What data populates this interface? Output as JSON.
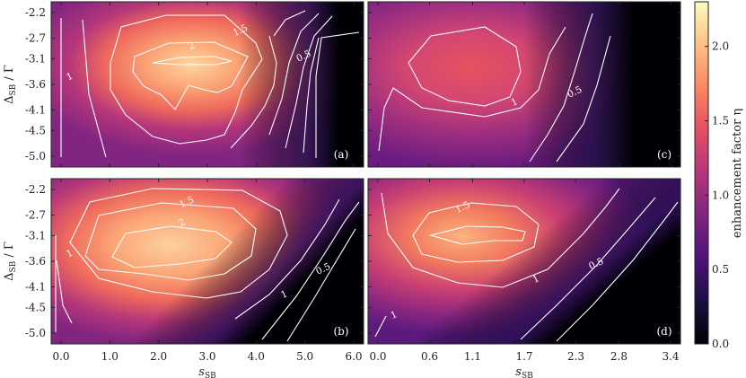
{
  "chart_data": {
    "type": "heatmap",
    "colormap": "magma",
    "colorbar": {
      "label": "enhancement factor η",
      "range": [
        0.0,
        2.3
      ],
      "ticks": [
        "0.0",
        "0.5",
        "1.0",
        "1.5",
        "2.0"
      ],
      "tick_values": [
        0.0,
        0.5,
        1.0,
        1.5,
        2.0
      ]
    },
    "y_axis": {
      "label": "ΔSB / Γ",
      "ticks": [
        "-2.2",
        "-2.7",
        "-3.1",
        "-3.6",
        "-4.1",
        "-4.5",
        "-5.0"
      ],
      "range": [
        -5.0,
        -2.2
      ]
    },
    "x_axes": {
      "left": {
        "label": "sSB",
        "ticks": [
          "0.0",
          "1.0",
          "2.0",
          "3.0",
          "4.0",
          "5.0",
          "6.0"
        ],
        "range": [
          0.0,
          6.0
        ]
      },
      "right": {
        "label": "sSB",
        "ticks": [
          "0.0",
          "0.6",
          "1.1",
          "1.7",
          "2.3",
          "2.8",
          "3.4"
        ],
        "range": [
          0.0,
          3.4
        ]
      }
    },
    "panels": [
      {
        "letter": "(a)",
        "position": "top-left",
        "x_axis": "left",
        "peak": {
          "x": 3.0,
          "y": -3.3,
          "value": 2.3
        },
        "contour_labels": [
          {
            "text": "1.5",
            "x": 3.7,
            "y": -2.6
          },
          {
            "text": "2",
            "x": 2.7,
            "y": -2.9
          },
          {
            "text": "0.5",
            "x": 5.0,
            "y": -3.1
          },
          {
            "text": "1",
            "x": 0.2,
            "y": -3.5
          }
        ]
      },
      {
        "letter": "(c)",
        "position": "top-right",
        "x_axis": "right",
        "peak": {
          "x": 1.1,
          "y": -3.2,
          "value": 1.45
        },
        "contour_labels": [
          {
            "text": "1",
            "x": 1.6,
            "y": -4.0
          },
          {
            "text": "0.5",
            "x": 2.3,
            "y": -3.8
          }
        ]
      },
      {
        "letter": "(b)",
        "position": "bottom-left",
        "x_axis": "left",
        "peak": {
          "x": 2.3,
          "y": -3.3,
          "value": 2.25
        },
        "contour_labels": [
          {
            "text": "1.5",
            "x": 2.6,
            "y": -2.5
          },
          {
            "text": "2",
            "x": 2.5,
            "y": -2.9
          },
          {
            "text": "0.5",
            "x": 5.4,
            "y": -3.8
          },
          {
            "text": "1",
            "x": 4.6,
            "y": -4.3
          },
          {
            "text": "1",
            "x": 0.2,
            "y": -3.5
          }
        ]
      },
      {
        "letter": "(d)",
        "position": "bottom-right",
        "x_axis": "right",
        "peak": {
          "x": 1.0,
          "y": -3.1,
          "value": 1.85
        },
        "contour_labels": [
          {
            "text": "1.5",
            "x": 1.0,
            "y": -2.6
          },
          {
            "text": "1",
            "x": 1.85,
            "y": -4.0
          },
          {
            "text": "0.5",
            "x": 2.55,
            "y": -3.7
          },
          {
            "text": "1",
            "x": 0.2,
            "y": -4.7
          }
        ]
      }
    ]
  }
}
